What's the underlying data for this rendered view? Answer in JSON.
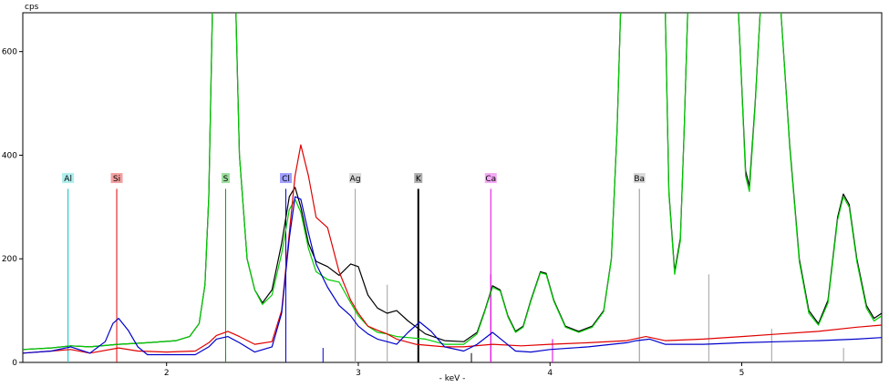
{
  "chart_data": {
    "type": "line",
    "title": "",
    "xlabel": "- keV -",
    "ylabel": "cps",
    "xlim": [
      1.25,
      5.73
    ],
    "ylim": [
      0,
      675
    ],
    "x_ticks": [
      2,
      3,
      4,
      5
    ],
    "y_ticks": [
      0,
      200,
      400,
      600
    ],
    "grid": false,
    "legend": "none",
    "series": [
      {
        "color": "#000000",
        "points": [
          [
            1.25,
            25
          ],
          [
            1.4,
            28
          ],
          [
            1.5,
            32
          ],
          [
            1.6,
            30
          ],
          [
            1.75,
            35
          ],
          [
            1.9,
            38
          ],
          [
            2.05,
            42
          ],
          [
            2.12,
            50
          ],
          [
            2.17,
            75
          ],
          [
            2.2,
            150
          ],
          [
            2.22,
            320
          ],
          [
            2.24,
            700
          ],
          [
            2.36,
            700
          ],
          [
            2.38,
            400
          ],
          [
            2.42,
            200
          ],
          [
            2.46,
            140
          ],
          [
            2.5,
            115
          ],
          [
            2.55,
            140
          ],
          [
            2.6,
            230
          ],
          [
            2.64,
            320
          ],
          [
            2.67,
            338
          ],
          [
            2.7,
            300
          ],
          [
            2.74,
            230
          ],
          [
            2.78,
            195
          ],
          [
            2.84,
            185
          ],
          [
            2.9,
            168
          ],
          [
            2.96,
            190
          ],
          [
            3.0,
            185
          ],
          [
            3.05,
            130
          ],
          [
            3.1,
            105
          ],
          [
            3.15,
            95
          ],
          [
            3.2,
            100
          ],
          [
            3.26,
            80
          ],
          [
            3.35,
            55
          ],
          [
            3.45,
            42
          ],
          [
            3.55,
            40
          ],
          [
            3.62,
            58
          ],
          [
            3.66,
            100
          ],
          [
            3.7,
            148
          ],
          [
            3.74,
            140
          ],
          [
            3.78,
            90
          ],
          [
            3.82,
            60
          ],
          [
            3.86,
            70
          ],
          [
            3.9,
            120
          ],
          [
            3.95,
            175
          ],
          [
            3.98,
            172
          ],
          [
            4.02,
            120
          ],
          [
            4.08,
            70
          ],
          [
            4.15,
            60
          ],
          [
            4.22,
            70
          ],
          [
            4.28,
            100
          ],
          [
            4.32,
            200
          ],
          [
            4.35,
            450
          ],
          [
            4.37,
            700
          ],
          [
            4.6,
            700
          ],
          [
            4.62,
            330
          ],
          [
            4.65,
            175
          ],
          [
            4.68,
            240
          ],
          [
            4.7,
            450
          ],
          [
            4.72,
            700
          ],
          [
            4.98,
            700
          ],
          [
            5.02,
            370
          ],
          [
            5.04,
            340
          ],
          [
            5.07,
            500
          ],
          [
            5.1,
            700
          ],
          [
            5.2,
            700
          ],
          [
            5.25,
            420
          ],
          [
            5.3,
            200
          ],
          [
            5.35,
            100
          ],
          [
            5.4,
            75
          ],
          [
            5.45,
            120
          ],
          [
            5.5,
            280
          ],
          [
            5.53,
            325
          ],
          [
            5.56,
            305
          ],
          [
            5.6,
            200
          ],
          [
            5.65,
            110
          ],
          [
            5.69,
            85
          ],
          [
            5.73,
            95
          ]
        ]
      },
      {
        "color": "#00cc00",
        "points": [
          [
            1.25,
            25
          ],
          [
            1.4,
            28
          ],
          [
            1.5,
            32
          ],
          [
            1.6,
            30
          ],
          [
            1.75,
            35
          ],
          [
            1.9,
            38
          ],
          [
            2.05,
            42
          ],
          [
            2.12,
            50
          ],
          [
            2.17,
            75
          ],
          [
            2.2,
            150
          ],
          [
            2.22,
            320
          ],
          [
            2.24,
            700
          ],
          [
            2.36,
            700
          ],
          [
            2.38,
            400
          ],
          [
            2.42,
            200
          ],
          [
            2.46,
            140
          ],
          [
            2.5,
            112
          ],
          [
            2.55,
            130
          ],
          [
            2.6,
            210
          ],
          [
            2.64,
            295
          ],
          [
            2.67,
            315
          ],
          [
            2.7,
            290
          ],
          [
            2.74,
            220
          ],
          [
            2.78,
            175
          ],
          [
            2.84,
            160
          ],
          [
            2.9,
            155
          ],
          [
            2.96,
            115
          ],
          [
            3.0,
            90
          ],
          [
            3.05,
            70
          ],
          [
            3.1,
            58
          ],
          [
            3.15,
            55
          ],
          [
            3.2,
            50
          ],
          [
            3.26,
            48
          ],
          [
            3.35,
            45
          ],
          [
            3.45,
            35
          ],
          [
            3.55,
            35
          ],
          [
            3.62,
            55
          ],
          [
            3.66,
            98
          ],
          [
            3.7,
            145
          ],
          [
            3.74,
            138
          ],
          [
            3.78,
            88
          ],
          [
            3.82,
            58
          ],
          [
            3.86,
            68
          ],
          [
            3.9,
            118
          ],
          [
            3.95,
            173
          ],
          [
            3.98,
            170
          ],
          [
            4.02,
            118
          ],
          [
            4.08,
            68
          ],
          [
            4.15,
            58
          ],
          [
            4.22,
            68
          ],
          [
            4.28,
            98
          ],
          [
            4.32,
            198
          ],
          [
            4.35,
            450
          ],
          [
            4.37,
            700
          ],
          [
            4.6,
            700
          ],
          [
            4.62,
            325
          ],
          [
            4.65,
            170
          ],
          [
            4.68,
            235
          ],
          [
            4.7,
            450
          ],
          [
            4.72,
            700
          ],
          [
            4.98,
            700
          ],
          [
            5.02,
            360
          ],
          [
            5.04,
            330
          ],
          [
            5.07,
            495
          ],
          [
            5.1,
            700
          ],
          [
            5.2,
            700
          ],
          [
            5.25,
            415
          ],
          [
            5.3,
            195
          ],
          [
            5.35,
            95
          ],
          [
            5.4,
            72
          ],
          [
            5.45,
            115
          ],
          [
            5.5,
            275
          ],
          [
            5.53,
            320
          ],
          [
            5.56,
            300
          ],
          [
            5.6,
            195
          ],
          [
            5.65,
            105
          ],
          [
            5.69,
            80
          ],
          [
            5.73,
            90
          ]
        ]
      },
      {
        "color": "#e00000",
        "points": [
          [
            1.25,
            18
          ],
          [
            1.4,
            22
          ],
          [
            1.5,
            25
          ],
          [
            1.6,
            18
          ],
          [
            1.75,
            28
          ],
          [
            1.85,
            22
          ],
          [
            2.0,
            20
          ],
          [
            2.15,
            22
          ],
          [
            2.22,
            38
          ],
          [
            2.26,
            52
          ],
          [
            2.32,
            60
          ],
          [
            2.38,
            50
          ],
          [
            2.46,
            35
          ],
          [
            2.55,
            40
          ],
          [
            2.6,
            100
          ],
          [
            2.64,
            250
          ],
          [
            2.67,
            360
          ],
          [
            2.7,
            420
          ],
          [
            2.74,
            360
          ],
          [
            2.78,
            280
          ],
          [
            2.84,
            260
          ],
          [
            2.9,
            175
          ],
          [
            2.96,
            120
          ],
          [
            3.0,
            95
          ],
          [
            3.05,
            70
          ],
          [
            3.1,
            62
          ],
          [
            3.15,
            55
          ],
          [
            3.2,
            45
          ],
          [
            3.3,
            35
          ],
          [
            3.45,
            30
          ],
          [
            3.55,
            30
          ],
          [
            3.7,
            35
          ],
          [
            3.85,
            32
          ],
          [
            4.0,
            35
          ],
          [
            4.2,
            38
          ],
          [
            4.4,
            42
          ],
          [
            4.5,
            50
          ],
          [
            4.6,
            42
          ],
          [
            4.8,
            45
          ],
          [
            5.0,
            50
          ],
          [
            5.2,
            55
          ],
          [
            5.4,
            60
          ],
          [
            5.6,
            68
          ],
          [
            5.73,
            72
          ]
        ]
      },
      {
        "color": "#0000cc",
        "points": [
          [
            1.25,
            18
          ],
          [
            1.4,
            22
          ],
          [
            1.5,
            30
          ],
          [
            1.6,
            18
          ],
          [
            1.68,
            40
          ],
          [
            1.72,
            75
          ],
          [
            1.75,
            85
          ],
          [
            1.8,
            62
          ],
          [
            1.85,
            30
          ],
          [
            1.9,
            15
          ],
          [
            2.0,
            15
          ],
          [
            2.15,
            15
          ],
          [
            2.22,
            30
          ],
          [
            2.26,
            45
          ],
          [
            2.32,
            50
          ],
          [
            2.38,
            38
          ],
          [
            2.46,
            20
          ],
          [
            2.55,
            30
          ],
          [
            2.6,
            95
          ],
          [
            2.64,
            240
          ],
          [
            2.67,
            320
          ],
          [
            2.7,
            315
          ],
          [
            2.74,
            250
          ],
          [
            2.78,
            190
          ],
          [
            2.84,
            145
          ],
          [
            2.9,
            110
          ],
          [
            2.96,
            90
          ],
          [
            3.0,
            70
          ],
          [
            3.05,
            55
          ],
          [
            3.1,
            45
          ],
          [
            3.15,
            40
          ],
          [
            3.2,
            35
          ],
          [
            3.26,
            58
          ],
          [
            3.32,
            78
          ],
          [
            3.38,
            60
          ],
          [
            3.45,
            30
          ],
          [
            3.55,
            22
          ],
          [
            3.62,
            35
          ],
          [
            3.7,
            58
          ],
          [
            3.76,
            40
          ],
          [
            3.82,
            22
          ],
          [
            3.9,
            20
          ],
          [
            4.0,
            25
          ],
          [
            4.2,
            30
          ],
          [
            4.4,
            38
          ],
          [
            4.45,
            42
          ],
          [
            4.52,
            45
          ],
          [
            4.6,
            35
          ],
          [
            4.8,
            35
          ],
          [
            5.0,
            38
          ],
          [
            5.2,
            40
          ],
          [
            5.4,
            42
          ],
          [
            5.6,
            45
          ],
          [
            5.73,
            48
          ]
        ]
      }
    ],
    "element_markers": [
      {
        "label": "Al",
        "x": 1.486,
        "color": "#00c8c8",
        "label_bg": "#aeeeee"
      },
      {
        "label": "Si",
        "x": 1.74,
        "color": "#e00000",
        "label_bg": "#f4a0a0"
      },
      {
        "label": "S",
        "x": 2.308,
        "color": "#00a000",
        "label_bg": "#9edd9e"
      },
      {
        "label": "Cl",
        "x": 2.622,
        "color": "#0000cc",
        "label_bg": "#a0a0ff"
      },
      {
        "label": "Ag",
        "x": 2.984,
        "color": "#a0a0a0",
        "label_bg": "#d8d8d8"
      },
      {
        "label": "K",
        "x": 3.313,
        "color": "#000000",
        "label_bg": "#b0b0b0"
      },
      {
        "label": "Ca",
        "x": 3.691,
        "color": "#e000e0",
        "label_bg": "#f4a8f4"
      },
      {
        "label": "Ba",
        "x": 4.466,
        "color": "#909090",
        "label_bg": "#d8d8d8"
      }
    ],
    "marker_label_y": 355,
    "marker_line_top": 335,
    "peak_lines": [
      {
        "x": 2.308,
        "h": 18,
        "color": "#00a000"
      },
      {
        "x": 2.622,
        "h": 170,
        "color": "#0000cc"
      },
      {
        "x": 2.816,
        "h": 28,
        "color": "#0000cc"
      },
      {
        "x": 2.984,
        "h": 115,
        "color": "#a0a0a0"
      },
      {
        "x": 3.151,
        "h": 150,
        "color": "#a0a0a0"
      },
      {
        "x": 3.313,
        "h": 170,
        "color": "#000000"
      },
      {
        "x": 3.59,
        "h": 18,
        "color": "#000000"
      },
      {
        "x": 3.691,
        "h": 170,
        "color": "#e000e0"
      },
      {
        "x": 4.013,
        "h": 45,
        "color": "#e000e0"
      },
      {
        "x": 4.828,
        "h": 170,
        "color": "#a0a0a0"
      },
      {
        "x": 5.156,
        "h": 65,
        "color": "#a0a0a0"
      },
      {
        "x": 5.531,
        "h": 28,
        "color": "#a0a0a0"
      }
    ]
  }
}
